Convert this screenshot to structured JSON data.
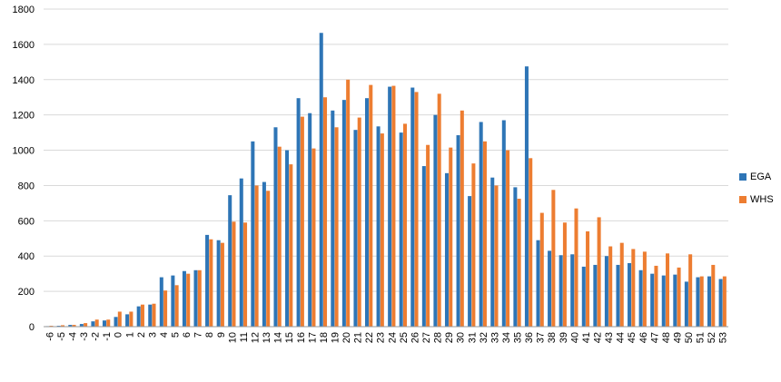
{
  "chart_data": {
    "type": "bar",
    "title": "",
    "xlabel": "",
    "ylabel": "",
    "ylim": [
      0,
      1800
    ],
    "yticks": [
      0,
      200,
      400,
      600,
      800,
      1000,
      1200,
      1400,
      1600,
      1800
    ],
    "grid": true,
    "legend": "right",
    "categories": [
      "-6",
      "-5",
      "-4",
      "-3",
      "-2",
      "-1",
      "0",
      "1",
      "2",
      "3",
      "4",
      "5",
      "6",
      "7",
      "8",
      "9",
      "10",
      "11",
      "12",
      "13",
      "14",
      "15",
      "16",
      "17",
      "18",
      "19",
      "20",
      "21",
      "22",
      "23",
      "24",
      "25",
      "26",
      "27",
      "28",
      "29",
      "30",
      "31",
      "32",
      "33",
      "34",
      "35",
      "36",
      "37",
      "38",
      "39",
      "40",
      "41",
      "42",
      "43",
      "44",
      "45",
      "46",
      "47",
      "48",
      "49",
      "50",
      "51",
      "52",
      "53"
    ],
    "series": [
      {
        "name": "EGA",
        "color": "#2E75B6",
        "values": [
          3,
          5,
          10,
          15,
          30,
          35,
          55,
          70,
          115,
          125,
          280,
          290,
          315,
          320,
          520,
          490,
          745,
          840,
          1050,
          820,
          1130,
          1000,
          1295,
          1210,
          1665,
          1225,
          1285,
          1115,
          1295,
          1135,
          1360,
          1100,
          1355,
          910,
          1200,
          870,
          1085,
          740,
          1160,
          845,
          1170,
          790,
          1475,
          490,
          430,
          405,
          410,
          340,
          350,
          400,
          350,
          360,
          320,
          300,
          290,
          295,
          255,
          280,
          285,
          270
        ]
      },
      {
        "name": "WHS",
        "color": "#ED7D31",
        "values": [
          5,
          8,
          10,
          20,
          40,
          40,
          85,
          85,
          125,
          130,
          205,
          235,
          300,
          320,
          495,
          475,
          595,
          590,
          800,
          770,
          1020,
          920,
          1190,
          1010,
          1300,
          1130,
          1400,
          1185,
          1370,
          1095,
          1365,
          1150,
          1330,
          1030,
          1320,
          1015,
          1225,
          925,
          1050,
          800,
          1000,
          725,
          955,
          645,
          775,
          590,
          670,
          540,
          620,
          455,
          475,
          440,
          425,
          345,
          415,
          335,
          410,
          285,
          350,
          285
        ]
      }
    ]
  }
}
